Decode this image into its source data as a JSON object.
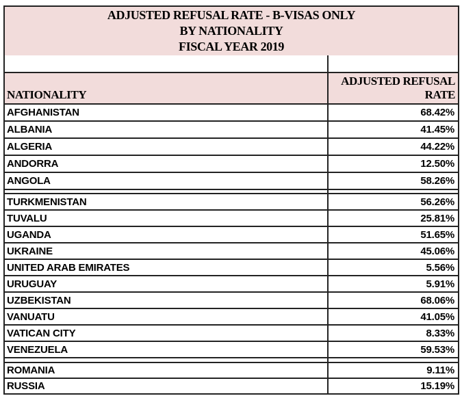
{
  "document": {
    "title_lines": [
      "ADJUSTED REFUSAL RATE - B-VISAS ONLY",
      "BY NATIONALITY",
      "FISCAL YEAR 2019"
    ],
    "columns": {
      "nationality_label": "NATIONALITY",
      "rate_label_line1": "ADJUSTED REFUSAL",
      "rate_label_line2": "RATE"
    }
  },
  "sections": [
    {
      "rows": [
        {
          "nationality": "AFGHANISTAN",
          "rate": "68.42%"
        },
        {
          "nationality": "ALBANIA",
          "rate": "41.45%"
        },
        {
          "nationality": "ALGERIA",
          "rate": "44.22%"
        },
        {
          "nationality": "ANDORRA",
          "rate": "12.50%"
        },
        {
          "nationality": "ANGOLA",
          "rate": "58.26%"
        }
      ]
    },
    {
      "rows": [
        {
          "nationality": "TURKMENISTAN",
          "rate": "56.26%"
        },
        {
          "nationality": "TUVALU",
          "rate": "25.81%"
        },
        {
          "nationality": "UGANDA",
          "rate": "51.65%"
        },
        {
          "nationality": "UKRAINE",
          "rate": "45.06%"
        },
        {
          "nationality": "UNITED ARAB EMIRATES",
          "rate": "5.56%"
        },
        {
          "nationality": "URUGUAY",
          "rate": "5.91%"
        },
        {
          "nationality": "UZBEKISTAN",
          "rate": "68.06%"
        },
        {
          "nationality": "VANUATU",
          "rate": "41.05%"
        },
        {
          "nationality": "VATICAN CITY",
          "rate": "8.33%"
        },
        {
          "nationality": "VENEZUELA",
          "rate": "59.53%"
        }
      ]
    },
    {
      "rows": [
        {
          "nationality": "ROMANIA",
          "rate": "9.11%"
        },
        {
          "nationality": "RUSSIA",
          "rate": "15.19%"
        }
      ]
    }
  ],
  "colors": {
    "header_bg": "#f2dcdb",
    "border": "#222222",
    "text": "#000000"
  }
}
